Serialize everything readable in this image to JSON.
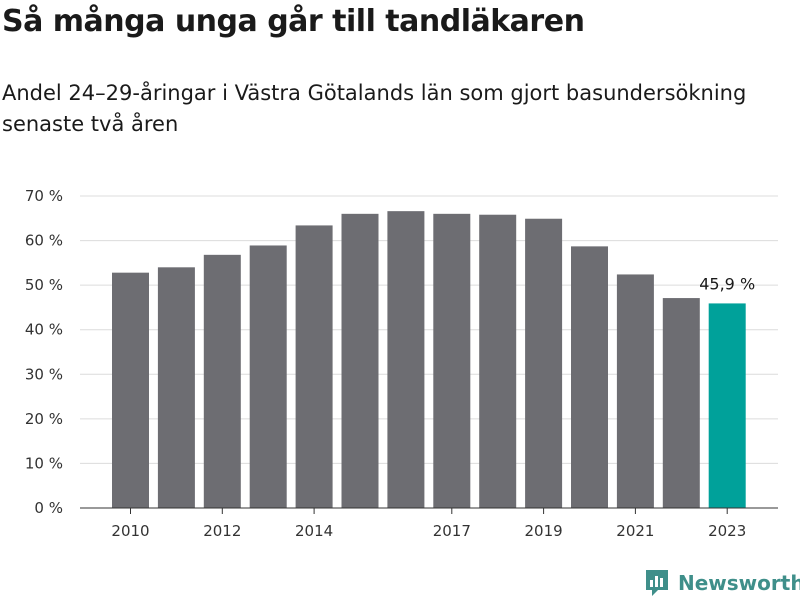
{
  "header": {
    "title": "Så många unga går till tandläkaren",
    "subtitle": "Andel 24–29-åringar i Västra Götalands län som gjort basundersökning senaste två åren"
  },
  "brand": {
    "name": "Newsworthy",
    "color": "#3f8f8a"
  },
  "colors": {
    "bar": "#6d6d72",
    "highlight": "#00a19a",
    "grid": "#dcdcdc",
    "axis": "#333333"
  },
  "chart_data": {
    "type": "bar",
    "title": "Så många unga går till tandläkaren",
    "subtitle": "Andel 24–29-åringar i Västra Götalands län som gjort basundersökning senaste två åren",
    "categories": [
      "2010",
      "2011",
      "2012",
      "2013",
      "2014",
      "2015",
      "2016",
      "2017",
      "2018",
      "2019",
      "2020",
      "2021",
      "2022",
      "2023"
    ],
    "values": [
      52.8,
      54.0,
      56.8,
      58.9,
      63.4,
      66.0,
      66.6,
      66.0,
      65.8,
      64.9,
      58.7,
      52.4,
      47.1,
      45.9
    ],
    "highlight_index": 13,
    "annotation": "45,9 %",
    "xtick_labels": [
      "2010",
      "2012",
      "2014",
      "2017",
      "2019",
      "2021",
      "2023"
    ],
    "yticks": [
      0,
      10,
      20,
      30,
      40,
      50,
      60,
      70
    ],
    "ytick_labels": [
      "0 %",
      "10 %",
      "20 %",
      "30 %",
      "40 %",
      "50 %",
      "60 %",
      "70 %"
    ],
    "ylim": [
      0,
      70
    ],
    "grid": true,
    "legend": "none"
  }
}
